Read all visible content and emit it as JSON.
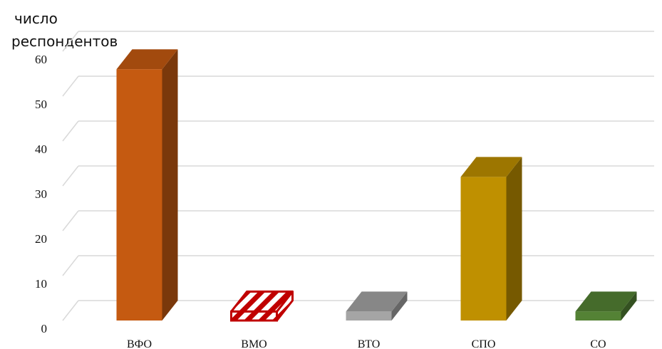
{
  "chart_data": {
    "type": "bar",
    "style": "3d-column",
    "ylabel_lines": [
      "число",
      "респондентов"
    ],
    "xlabel": "",
    "title": "",
    "ylim": [
      0,
      60
    ],
    "yticks": [
      0,
      10,
      20,
      30,
      40,
      50,
      60
    ],
    "grid": true,
    "legend": "none",
    "categories": [
      "ВФО",
      "ВМО",
      "ВТО",
      "СПО",
      "СО"
    ],
    "values": [
      56,
      2,
      2,
      32,
      2
    ],
    "bar_colors": [
      "#C55A11",
      "#C00000",
      "#A5A5A5",
      "#BF9000",
      "#548235"
    ],
    "bar_patterns": [
      "solid",
      "diagonal-stripes",
      "solid",
      "solid",
      "solid"
    ]
  }
}
